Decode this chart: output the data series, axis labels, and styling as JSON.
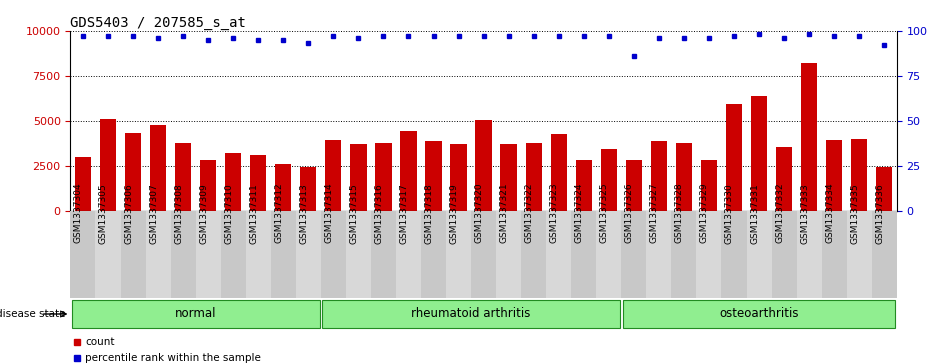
{
  "title": "GDS5403 / 207585_s_at",
  "samples": [
    "GSM1337304",
    "GSM1337305",
    "GSM1337306",
    "GSM1337307",
    "GSM1337308",
    "GSM1337309",
    "GSM1337310",
    "GSM1337311",
    "GSM1337312",
    "GSM1337313",
    "GSM1337314",
    "GSM1337315",
    "GSM1337316",
    "GSM1337317",
    "GSM1337318",
    "GSM1337319",
    "GSM1337320",
    "GSM1337321",
    "GSM1337322",
    "GSM1337323",
    "GSM1337324",
    "GSM1337325",
    "GSM1337326",
    "GSM1337327",
    "GSM1337328",
    "GSM1337329",
    "GSM1337330",
    "GSM1337331",
    "GSM1337332",
    "GSM1337333",
    "GSM1337334",
    "GSM1337335",
    "GSM1337336"
  ],
  "counts": [
    3000,
    5100,
    4300,
    4750,
    3750,
    2800,
    3200,
    3100,
    2600,
    2400,
    3950,
    3700,
    3750,
    4450,
    3850,
    3700,
    5050,
    3700,
    3750,
    4250,
    2800,
    3400,
    2800,
    3850,
    3750,
    2800,
    5950,
    6400,
    3550,
    8200,
    3900,
    4000,
    2400
  ],
  "percentile_ranks": [
    97,
    97,
    97,
    96,
    97,
    95,
    96,
    95,
    95,
    93,
    97,
    96,
    97,
    97,
    97,
    97,
    97,
    97,
    97,
    97,
    97,
    97,
    86,
    96,
    96,
    96,
    97,
    98,
    96,
    98,
    97,
    97,
    92
  ],
  "group_boundaries": [
    0,
    10,
    22,
    33
  ],
  "group_labels": [
    "normal",
    "rheumatoid arthritis",
    "osteoarthritis"
  ],
  "group_color": "#90EE90",
  "group_edge_color": "#228B22",
  "bar_color": "#CC0000",
  "dot_color": "#0000CC",
  "ylim_left": [
    0,
    10000
  ],
  "ylim_right": [
    0,
    100
  ],
  "yticks_left": [
    0,
    2500,
    5000,
    7500,
    10000
  ],
  "yticks_right": [
    0,
    25,
    50,
    75,
    100
  ],
  "grid_color": "black",
  "bg_color": "#ffffff",
  "tick_area_color": "#d4d4d4",
  "legend_count_color": "#CC0000",
  "legend_dot_color": "#0000CC",
  "disease_state_label": "disease state",
  "title_fontsize": 10,
  "tick_fontsize": 6.5,
  "label_fontsize": 8,
  "group_label_fontsize": 8.5,
  "bar_width": 0.65
}
